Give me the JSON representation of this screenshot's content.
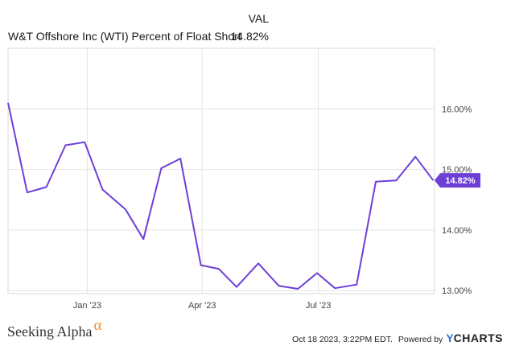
{
  "header": {
    "val_label": "VAL",
    "series_name": "W&T Offshore Inc (WTI) Percent of Float Short",
    "series_value": "14.82%"
  },
  "chart_data": {
    "type": "line",
    "title": "",
    "xlabel": "",
    "ylabel": "",
    "ylim": [
      12.95,
      17.0
    ],
    "x_ticks": [
      {
        "label": "Jan '23",
        "date": "2023-01-01"
      },
      {
        "label": "Apr '23",
        "date": "2023-04-01"
      },
      {
        "label": "Jul '23",
        "date": "2023-07-01"
      }
    ],
    "y_ticks": [
      {
        "label": "13.00%",
        "value": 13.0
      },
      {
        "label": "14.00%",
        "value": 14.0
      },
      {
        "label": "15.00%",
        "value": 15.0
      },
      {
        "label": "16.00%",
        "value": 16.0
      }
    ],
    "grid": true,
    "line_color": "#6d3fd6",
    "end_label": {
      "text": "14.82%",
      "value": 14.82,
      "color": "#6d3fd6"
    },
    "series": [
      {
        "x": [
          "2022-10-31",
          "2022-11-15",
          "2022-11-30",
          "2022-12-15",
          "2022-12-30",
          "2023-01-13",
          "2023-01-31",
          "2023-02-14",
          "2023-02-28",
          "2023-03-15",
          "2023-03-31",
          "2023-04-14",
          "2023-04-28",
          "2023-05-15",
          "2023-05-31",
          "2023-06-15",
          "2023-06-30",
          "2023-07-14",
          "2023-07-31",
          "2023-08-15",
          "2023-08-31",
          "2023-09-15",
          "2023-09-29"
        ],
        "values": [
          16.1,
          14.62,
          14.71,
          15.4,
          15.45,
          14.67,
          14.34,
          13.85,
          15.02,
          15.18,
          13.42,
          13.36,
          13.06,
          13.45,
          13.08,
          13.03,
          13.29,
          13.04,
          13.1,
          14.8,
          14.82,
          15.21,
          14.82
        ]
      }
    ]
  },
  "footer": {
    "brand": "Seeking Alpha",
    "brand_mark": "α",
    "timestamp": "Oct 18 2023, 3:22PM EDT.",
    "powered_by": "Powered by",
    "ycharts_y": "Y",
    "ycharts_rest": "CHARTS"
  }
}
